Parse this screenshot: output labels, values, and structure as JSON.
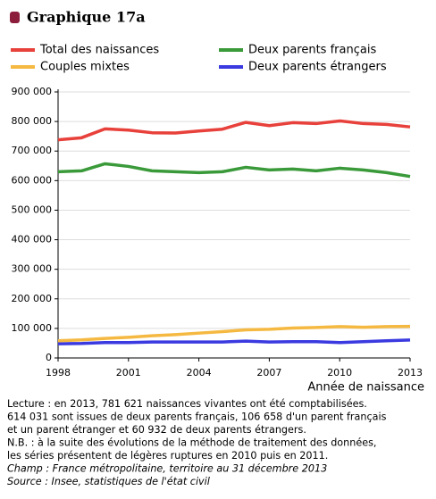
{
  "chart_data": {
    "type": "line",
    "title": "Graphique 17a",
    "x_label": "Année de naissance",
    "x": [
      1998,
      1999,
      2000,
      2001,
      2002,
      2003,
      2004,
      2005,
      2006,
      2007,
      2008,
      2009,
      2010,
      2011,
      2012,
      2013
    ],
    "xlim": [
      1998,
      2013
    ],
    "xticks": [
      1998,
      2001,
      2004,
      2007,
      2010,
      2013
    ],
    "ylim": [
      0,
      900000
    ],
    "yticks": [
      0,
      {
        "value": 100000,
        "label": "100 000"
      },
      {
        "value": 200000,
        "label": "200 000"
      },
      {
        "value": 300000,
        "label": "300 000"
      },
      {
        "value": 400000,
        "label": "400 000"
      },
      {
        "value": 500000,
        "label": "500 000"
      },
      {
        "value": 600000,
        "label": "600 000"
      },
      {
        "value": 700000,
        "label": "700 000"
      },
      {
        "value": 800000,
        "label": "800 000"
      },
      {
        "value": 900000,
        "label": "900 000"
      }
    ],
    "grid": true,
    "series": [
      {
        "name": "Total des naissances",
        "color": "#e8403a",
        "values": [
          738000,
          745000,
          775000,
          771000,
          762000,
          761000,
          768000,
          774000,
          797000,
          786000,
          796000,
          793000,
          802000,
          793000,
          790000,
          781621
        ]
      },
      {
        "name": "Deux parents français",
        "color": "#3a9a3a",
        "values": [
          630000,
          633000,
          657000,
          648000,
          633000,
          630000,
          627000,
          630000,
          645000,
          636000,
          639000,
          633000,
          642000,
          636000,
          627000,
          614031
        ]
      },
      {
        "name": "Couples mixtes",
        "color": "#f5b942",
        "values": [
          58000,
          61000,
          66000,
          70000,
          75000,
          79000,
          84000,
          89000,
          95000,
          97000,
          101000,
          103000,
          106000,
          104000,
          106000,
          106658
        ]
      },
      {
        "name": "Deux parents étrangers",
        "color": "#3a3ae0",
        "values": [
          48000,
          49000,
          52000,
          52000,
          54000,
          54000,
          54000,
          54000,
          57000,
          54000,
          55000,
          55000,
          52000,
          55000,
          58000,
          60932
        ]
      }
    ],
    "notes": [
      "Lecture : en 2013, 781 621 naissances vivantes ont été comptabilisées.",
      "614 031 sont issues de deux parents français, 106 658 d'un parent français",
      "et un parent étranger et 60 932 de deux parents étrangers.",
      "N.B. : à la suite des évolutions de la méthode de traitement des données,",
      "les séries présentent de légères ruptures en 2010 puis en 2011.",
      "Champ : France métropolitaine, territoire au 31 décembre 2013",
      "Source : Insee, statistiques de l'état civil"
    ]
  }
}
